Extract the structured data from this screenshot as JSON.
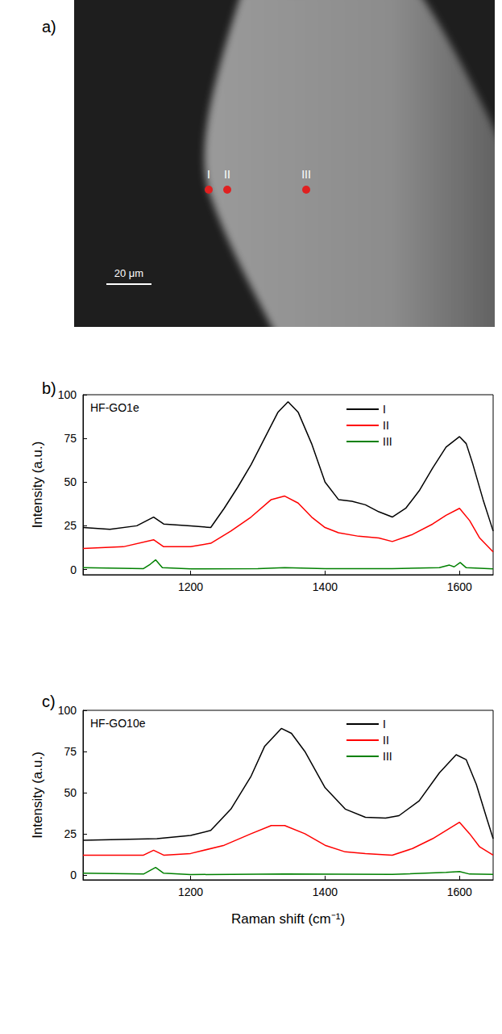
{
  "panel_labels": [
    "a)",
    "b)",
    "c)"
  ],
  "image": {
    "points": [
      "I",
      "II",
      "III"
    ],
    "scale_bar": "20 μm"
  },
  "chart_data": [
    {
      "type": "line",
      "title": "HF-GO1e",
      "y_label": "Intensity (a.u.)",
      "xlim": [
        1040,
        1650
      ],
      "xticks": [
        1200,
        1400,
        1600
      ],
      "ylim": [
        -3,
        100
      ],
      "yticks": [
        0,
        25,
        50,
        75,
        100
      ],
      "grid": false,
      "legend": "upper right",
      "series": [
        {
          "name": "I",
          "color": "#000000",
          "x": [
            1040,
            1080,
            1120,
            1145,
            1160,
            1200,
            1230,
            1250,
            1270,
            1290,
            1310,
            1330,
            1345,
            1360,
            1380,
            1400,
            1420,
            1440,
            1460,
            1480,
            1500,
            1520,
            1540,
            1560,
            1580,
            1600,
            1610,
            1620,
            1635,
            1645,
            1650
          ],
          "values": [
            24,
            23,
            25,
            30,
            26,
            25,
            24,
            35,
            47,
            60,
            75,
            90,
            96,
            90,
            72,
            50,
            40,
            39,
            37,
            33,
            30,
            35,
            45,
            58,
            70,
            76,
            72,
            60,
            40,
            28,
            22
          ]
        },
        {
          "name": "II",
          "color": "#ff0000",
          "x": [
            1040,
            1100,
            1145,
            1160,
            1200,
            1230,
            1260,
            1290,
            1320,
            1340,
            1360,
            1380,
            1400,
            1420,
            1450,
            1480,
            1500,
            1530,
            1560,
            1580,
            1600,
            1615,
            1630,
            1650
          ],
          "values": [
            12,
            13,
            17,
            13,
            13,
            15,
            22,
            30,
            40,
            42,
            38,
            30,
            24,
            21,
            19,
            18,
            16,
            20,
            26,
            31,
            35,
            28,
            18,
            10
          ]
        },
        {
          "name": "III",
          "color": "#008000",
          "x": [
            1040,
            1130,
            1140,
            1148,
            1158,
            1200,
            1300,
            1340,
            1400,
            1500,
            1570,
            1585,
            1592,
            1601,
            1610,
            1650
          ],
          "values": [
            1,
            0.5,
            3,
            5.5,
            1,
            0.3,
            0.5,
            1,
            0.5,
            0.5,
            1,
            2.5,
            1.5,
            4,
            1,
            0.3
          ]
        }
      ]
    },
    {
      "type": "line",
      "title": "HF-GO10e",
      "x_label": "Raman shift (cm⁻¹)",
      "y_label": "Intensity (a.u.)",
      "xlim": [
        1040,
        1650
      ],
      "xticks": [
        1200,
        1400,
        1600
      ],
      "ylim": [
        -3,
        100
      ],
      "yticks": [
        0,
        25,
        50,
        75,
        100
      ],
      "grid": false,
      "legend": "upper right",
      "series": [
        {
          "name": "I",
          "color": "#000000",
          "x": [
            1040,
            1150,
            1200,
            1230,
            1260,
            1290,
            1310,
            1335,
            1350,
            1370,
            1400,
            1430,
            1460,
            1490,
            1510,
            1540,
            1570,
            1595,
            1610,
            1625,
            1640,
            1650
          ],
          "values": [
            21,
            22,
            24,
            27,
            40,
            60,
            78,
            89,
            86,
            75,
            53,
            40,
            35,
            34.5,
            36,
            45,
            62,
            73,
            70,
            55,
            35,
            22
          ]
        },
        {
          "name": "II",
          "color": "#ff0000",
          "x": [
            1040,
            1130,
            1145,
            1160,
            1200,
            1250,
            1290,
            1320,
            1340,
            1370,
            1400,
            1430,
            1460,
            1500,
            1530,
            1560,
            1580,
            1600,
            1615,
            1630,
            1650
          ],
          "values": [
            12,
            12,
            15,
            12,
            13,
            18,
            25,
            30,
            30,
            25,
            18,
            14,
            13,
            12,
            16,
            22,
            27,
            32,
            25,
            17,
            12
          ]
        },
        {
          "name": "III",
          "color": "#008000",
          "x": [
            1040,
            1130,
            1148,
            1160,
            1200,
            1340,
            1500,
            1580,
            1600,
            1615,
            1650
          ],
          "values": [
            1,
            0.5,
            4.5,
            1,
            0.2,
            0.5,
            0.3,
            1.5,
            2,
            0.5,
            0.3
          ]
        }
      ]
    }
  ]
}
